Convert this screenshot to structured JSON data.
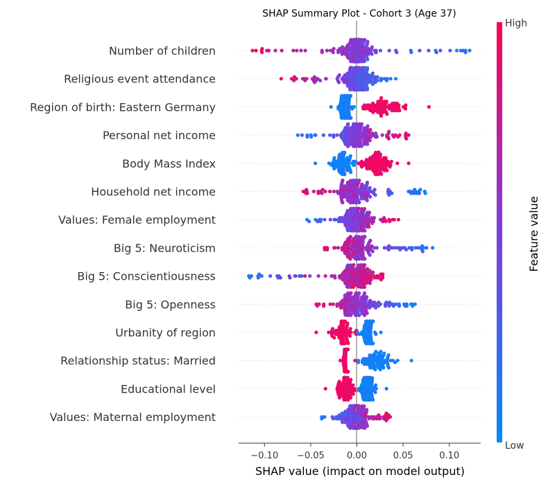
{
  "chart_data": {
    "type": "scatter",
    "subtype": "shap-beeswarm",
    "title": "SHAP Summary Plot - Cohort 3 (Age 37)",
    "xlabel": "SHAP value (impact on model output)",
    "xlim": [
      -0.128,
      0.134
    ],
    "xticks": [
      -0.1,
      -0.05,
      0.0,
      0.05,
      0.1
    ],
    "xtick_labels": [
      "−0.10",
      "−0.05",
      "0.00",
      "0.05",
      "0.10"
    ],
    "colorbar": {
      "label": "Feature value",
      "high_label": "High",
      "low_label": "Low",
      "high_color": "#ff0051",
      "mid_color": "#7e3ddf",
      "low_color": "#008bfb"
    },
    "grid": false,
    "features": [
      {
        "name": "Number of children",
        "min": -0.113,
        "max": 0.122,
        "pattern": "neg_high"
      },
      {
        "name": "Religious event attendance",
        "min": -0.082,
        "max": 0.042,
        "pattern": "neg_high"
      },
      {
        "name": "Region of birth: Eastern Germany",
        "min": -0.028,
        "max": 0.078,
        "pattern": "split_high_pos"
      },
      {
        "name": "Personal net income",
        "min": -0.064,
        "max": 0.056,
        "pattern": "pos_high"
      },
      {
        "name": "Body Mass Index",
        "min": -0.045,
        "max": 0.056,
        "pattern": "split_high_pos"
      },
      {
        "name": "Household net income",
        "min": -0.058,
        "max": 0.074,
        "pattern": "neg_high"
      },
      {
        "name": "Values: Female employment",
        "min": -0.054,
        "max": 0.045,
        "pattern": "pos_high"
      },
      {
        "name": "Big 5: Neuroticism",
        "min": -0.035,
        "max": 0.082,
        "pattern": "neg_high"
      },
      {
        "name": "Big 5: Conscientiousness",
        "min": -0.117,
        "max": 0.028,
        "pattern": "pos_high"
      },
      {
        "name": "Big 5: Openness",
        "min": -0.044,
        "max": 0.063,
        "pattern": "neg_high"
      },
      {
        "name": "Urbanity of region",
        "min": -0.044,
        "max": 0.026,
        "pattern": "split_high_neg"
      },
      {
        "name": "Relationship status: Married",
        "min": -0.018,
        "max": 0.059,
        "pattern": "split_high_neg"
      },
      {
        "name": "Educational level",
        "min": -0.034,
        "max": 0.032,
        "pattern": "split_high_neg"
      },
      {
        "name": "Values: Maternal employment",
        "min": -0.038,
        "max": 0.036,
        "pattern": "pos_high"
      }
    ]
  }
}
